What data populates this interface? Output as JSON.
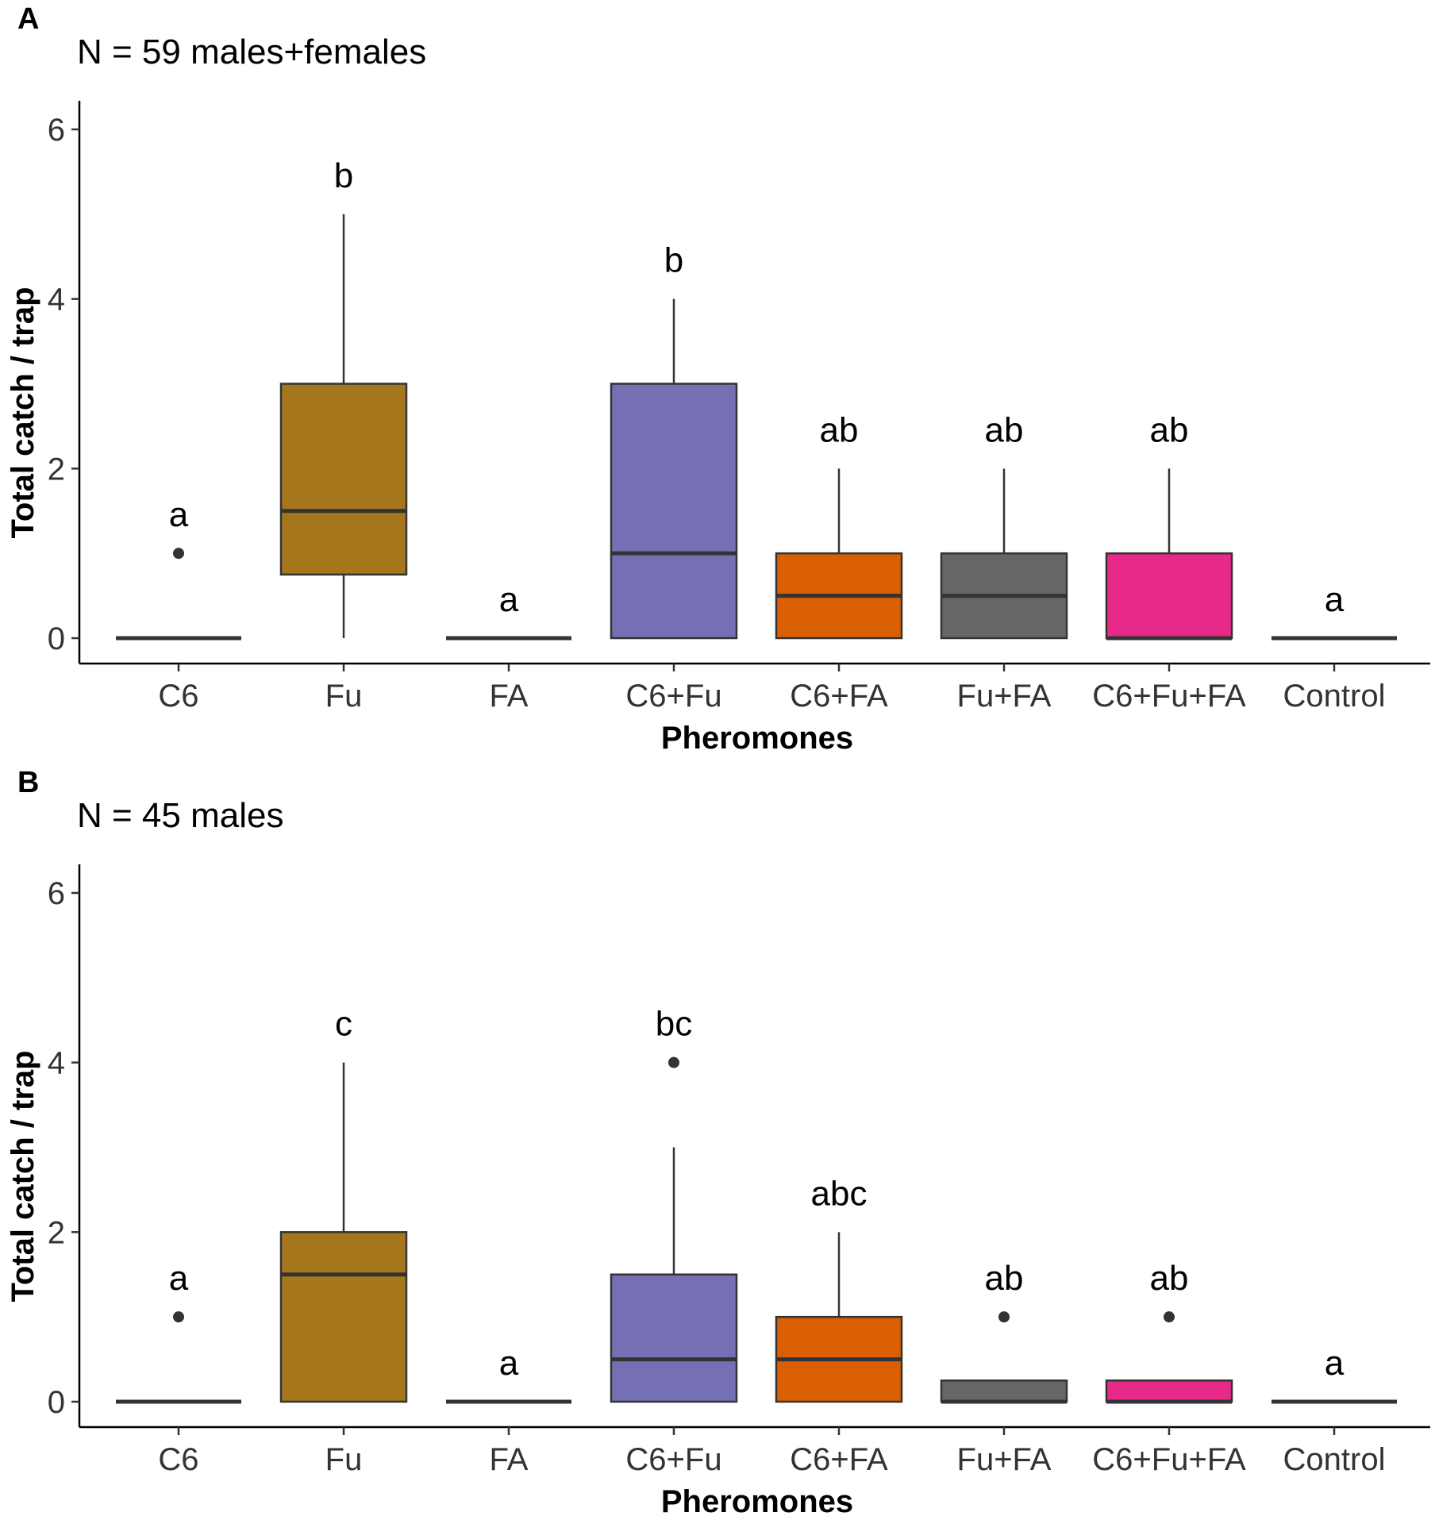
{
  "chart_data": [
    {
      "type": "box",
      "panel": "A",
      "title": "N = 59 males+females",
      "xlabel": "Pheromones",
      "ylabel": "Total catch / trap",
      "ylim": [
        0,
        6.2
      ],
      "yticks": [
        0,
        2,
        4,
        6
      ],
      "categories": [
        "C6",
        "Fu",
        "FA",
        "C6+Fu",
        "C6+FA",
        "Fu+FA",
        "C6+Fu+FA",
        "Control"
      ],
      "colors": [
        "#1B9E77",
        "#A6761D",
        "#E6AB02",
        "#7570B3",
        "#D95F02",
        "#666666",
        "#E7298A",
        "#66A61E"
      ],
      "boxes": [
        {
          "min": 0,
          "q1": 0,
          "median": 0,
          "q3": 0,
          "max": 0,
          "outliers": [
            1
          ],
          "letter": "a"
        },
        {
          "min": 0,
          "q1": 0.75,
          "median": 1.5,
          "q3": 3,
          "max": 5,
          "outliers": [],
          "letter": "b"
        },
        {
          "min": 0,
          "q1": 0,
          "median": 0,
          "q3": 0,
          "max": 0,
          "outliers": [],
          "letter": "a"
        },
        {
          "min": 0,
          "q1": 0,
          "median": 1,
          "q3": 3,
          "max": 4,
          "outliers": [],
          "letter": "b"
        },
        {
          "min": 0,
          "q1": 0,
          "median": 0.5,
          "q3": 1,
          "max": 2,
          "outliers": [],
          "letter": "ab"
        },
        {
          "min": 0,
          "q1": 0,
          "median": 0.5,
          "q3": 1,
          "max": 2,
          "outliers": [],
          "letter": "ab"
        },
        {
          "min": 0,
          "q1": 0,
          "median": 0,
          "q3": 1,
          "max": 2,
          "outliers": [],
          "letter": "ab"
        },
        {
          "min": 0,
          "q1": 0,
          "median": 0,
          "q3": 0,
          "max": 0,
          "outliers": [],
          "letter": "a"
        }
      ]
    },
    {
      "type": "box",
      "panel": "B",
      "title": "N = 45 males",
      "xlabel": "Pheromones",
      "ylabel": "Total catch / trap",
      "ylim": [
        0,
        6.2
      ],
      "yticks": [
        0,
        2,
        4,
        6
      ],
      "categories": [
        "C6",
        "Fu",
        "FA",
        "C6+Fu",
        "C6+FA",
        "Fu+FA",
        "C6+Fu+FA",
        "Control"
      ],
      "colors": [
        "#1B9E77",
        "#A6761D",
        "#E6AB02",
        "#7570B3",
        "#D95F02",
        "#666666",
        "#E7298A",
        "#66A61E"
      ],
      "boxes": [
        {
          "min": 0,
          "q1": 0,
          "median": 0,
          "q3": 0,
          "max": 0,
          "outliers": [
            1
          ],
          "letter": "a"
        },
        {
          "min": 0,
          "q1": 0,
          "median": 1.5,
          "q3": 2,
          "max": 4,
          "outliers": [],
          "letter": "c"
        },
        {
          "min": 0,
          "q1": 0,
          "median": 0,
          "q3": 0,
          "max": 0,
          "outliers": [],
          "letter": "a"
        },
        {
          "min": 0,
          "q1": 0,
          "median": 0.5,
          "q3": 1.5,
          "max": 3,
          "outliers": [
            4
          ],
          "letter": "bc"
        },
        {
          "min": 0,
          "q1": 0,
          "median": 0.5,
          "q3": 1,
          "max": 2,
          "outliers": [],
          "letter": "abc"
        },
        {
          "min": 0,
          "q1": 0,
          "median": 0,
          "q3": 0.25,
          "max": 0.25,
          "outliers": [
            1
          ],
          "letter": "ab"
        },
        {
          "min": 0,
          "q1": 0,
          "median": 0,
          "q3": 0.25,
          "max": 0.25,
          "outliers": [
            1
          ],
          "letter": "ab"
        },
        {
          "min": 0,
          "q1": 0,
          "median": 0,
          "q3": 0,
          "max": 0,
          "outliers": [],
          "letter": "a"
        }
      ]
    }
  ]
}
